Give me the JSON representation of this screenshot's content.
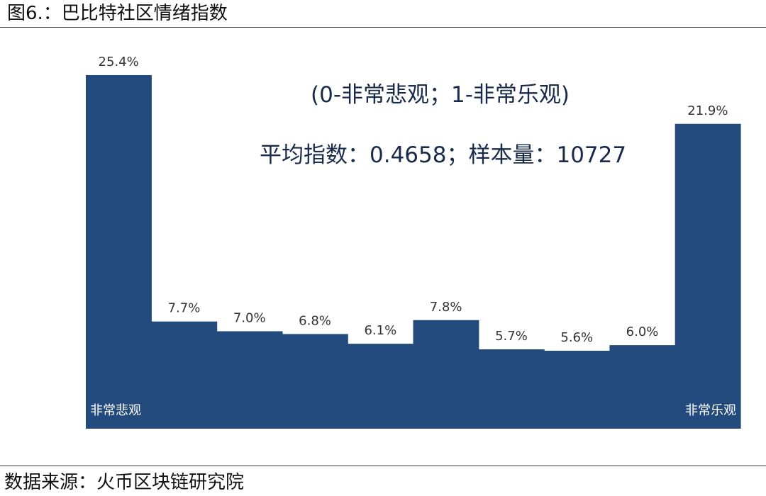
{
  "figure_title": "图6.：巴比特社区情绪指数",
  "source": "数据来源：火币区块链研究院",
  "chart_data": {
    "type": "bar",
    "title": "巴比特社区情绪指数",
    "categories": [
      "",
      "",
      "",
      "",
      "",
      "",
      "",
      "",
      "",
      ""
    ],
    "values": [
      25.4,
      7.7,
      7.0,
      6.8,
      6.1,
      7.8,
      5.7,
      5.6,
      6.0,
      21.9
    ],
    "value_labels": [
      "25.4%",
      "7.7%",
      "7.0%",
      "6.8%",
      "6.1%",
      "7.8%",
      "5.7%",
      "5.6%",
      "6.0%",
      "21.9%"
    ],
    "end_labels": {
      "left": "非常悲观",
      "right": "非常乐观"
    },
    "annotations": [
      "(0-非常悲观；1-非常乐观)",
      "平均指数：0.4658；样本量：10727"
    ],
    "ylim": [
      0,
      25.4
    ],
    "grid": false,
    "bar_color": "#234a7c",
    "label_color": "#333333",
    "end_label_color": "#ffffff"
  }
}
